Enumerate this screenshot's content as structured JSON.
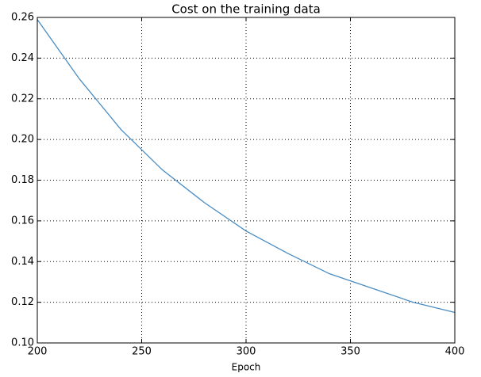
{
  "chart_data": {
    "type": "line",
    "title": "Cost on the training data",
    "x_label": "Epoch",
    "x": [
      200,
      220,
      240,
      260,
      280,
      300,
      320,
      340,
      360,
      380,
      400
    ],
    "series": [
      {
        "color": "#4a8cc2",
        "values": [
          0.259,
          0.23,
          0.205,
          0.185,
          0.169,
          0.155,
          0.144,
          0.134,
          0.127,
          0.12,
          0.115
        ]
      }
    ],
    "xlim": [
      200,
      400
    ],
    "xticks": [
      200,
      250,
      300,
      350,
      400
    ],
    "ylim": [
      0.1,
      0.26
    ],
    "yticks": [
      {
        "value": 0.1,
        "label": "0.10"
      },
      0.12,
      0.14,
      0.16,
      0.18,
      {
        "value": 0.2,
        "label": "0.20"
      },
      0.22,
      0.24,
      0.26
    ],
    "grid": true
  }
}
